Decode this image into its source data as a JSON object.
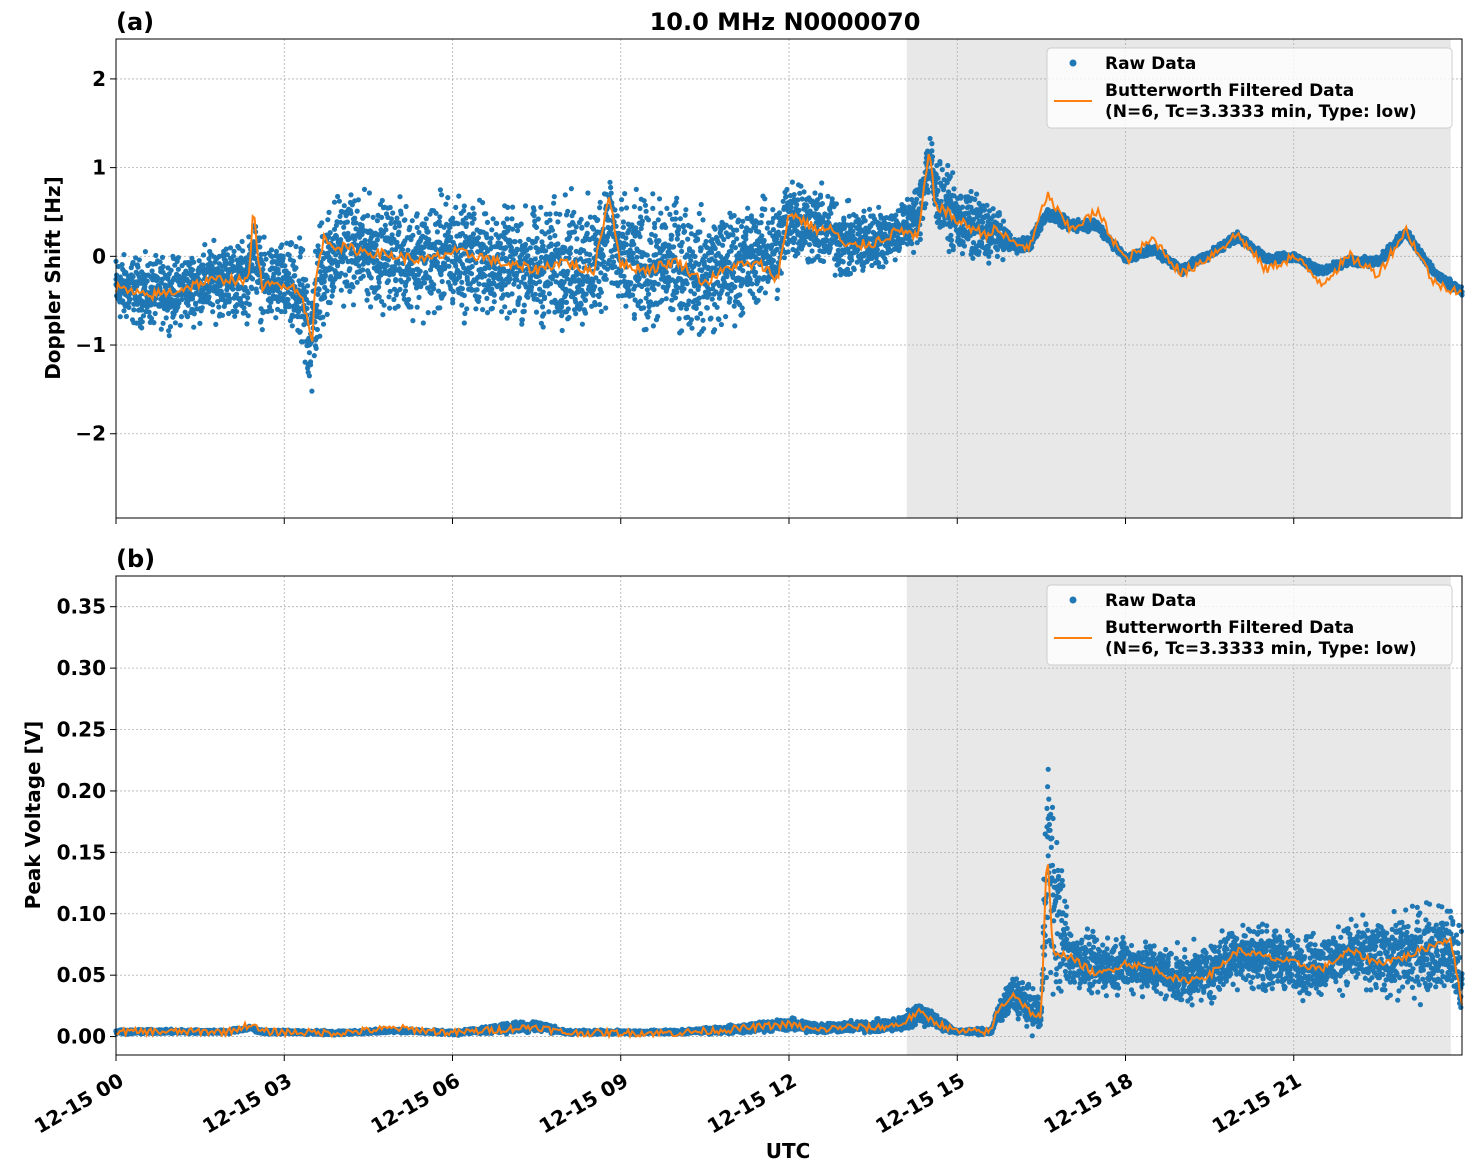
{
  "figure": {
    "title": "10.0 MHz N0000070",
    "xlabel": "UTC",
    "x_tick_labels": [
      "12-15 00",
      "12-15 03",
      "12-15 06",
      "12-15 09",
      "12-15 12",
      "12-15 15",
      "12-15 18",
      "12-15 21"
    ],
    "colors": {
      "raw": "#1f77b4",
      "filtered": "#ff7f0e",
      "shade": "#e8e8e8",
      "grid": "#b0b0b0"
    }
  },
  "chart_data": [
    {
      "type": "scatter",
      "panel_label": "(a)",
      "ylabel": "Doppler Shift [Hz]",
      "x_unit": "hours UTC since 12-15 00",
      "xlim": [
        0,
        24
      ],
      "ylim": [
        -2.95,
        2.45
      ],
      "y_ticks": [
        -2,
        -1,
        0,
        1,
        2
      ],
      "y_tick_labels": [
        "−2",
        "−1",
        "0",
        "1",
        "2"
      ],
      "grid": true,
      "shaded_x": [
        14.1,
        23.8
      ],
      "legend": {
        "position": "top-right",
        "raw_label": "Raw Data",
        "filtered_label_line1": "Butterworth Filtered Data",
        "filtered_label_line2": "(N=6, Tc=3.3333 min, Type: low)"
      },
      "series": [
        {
          "name": "Butterworth Filtered Data (N=6, Tc=3.3333 min, Type: low)",
          "x": [
            0,
            0.5,
            1,
            1.5,
            2,
            2.35,
            2.45,
            2.6,
            3,
            3.3,
            3.5,
            3.55,
            3.7,
            4,
            4.5,
            5,
            5.5,
            6,
            6.5,
            7,
            7.5,
            8,
            8.5,
            8.8,
            9,
            9.5,
            10,
            10.5,
            11,
            11.5,
            11.8,
            12,
            12.5,
            12.8,
            13,
            13.5,
            14,
            14.3,
            14.5,
            14.6,
            14.8,
            15,
            15.5,
            15.7,
            16,
            16.3,
            16.6,
            17,
            17.5,
            18,
            18.5,
            19,
            19.5,
            20,
            20.5,
            21,
            21.5,
            22,
            22.5,
            23,
            23.5,
            24
          ],
          "values": [
            -0.35,
            -0.45,
            -0.4,
            -0.3,
            -0.25,
            -0.3,
            0.5,
            -0.35,
            -0.3,
            -0.4,
            -1.0,
            -0.3,
            0.2,
            0.1,
            0.05,
            0.0,
            -0.05,
            0.05,
            0.0,
            -0.1,
            -0.15,
            -0.05,
            -0.2,
            0.7,
            -0.1,
            -0.15,
            -0.05,
            -0.3,
            -0.1,
            -0.1,
            -0.25,
            0.5,
            0.3,
            0.3,
            0.1,
            0.15,
            0.3,
            0.2,
            1.2,
            0.6,
            0.5,
            0.4,
            0.25,
            0.3,
            0.15,
            0.1,
            0.7,
            0.3,
            0.5,
            -0.05,
            0.2,
            -0.2,
            0.0,
            0.25,
            -0.15,
            0.0,
            -0.3,
            0.0,
            -0.2,
            0.3,
            -0.3,
            -0.4
          ]
        },
        {
          "name": "Raw Data",
          "x": [
            0,
            1,
            2,
            3,
            3.5,
            4,
            5,
            6,
            7,
            8,
            9,
            10,
            11,
            12,
            13,
            14,
            14.5,
            15,
            15.5,
            16,
            17,
            18,
            19,
            20,
            21,
            22,
            23,
            24
          ],
          "values": [
            -0.35,
            -0.4,
            -0.25,
            -0.3,
            -0.9,
            0.15,
            0.0,
            0.0,
            -0.1,
            -0.05,
            -0.05,
            -0.1,
            -0.1,
            0.5,
            0.15,
            0.3,
            1.0,
            0.4,
            0.3,
            0.1,
            0.4,
            0.0,
            -0.1,
            0.2,
            0.0,
            -0.1,
            0.25,
            -0.4
          ],
          "spread": [
            0.45,
            0.45,
            0.5,
            0.55,
            0.9,
            0.7,
            0.7,
            0.8,
            0.7,
            0.85,
            0.85,
            0.85,
            0.75,
            0.6,
            0.5,
            0.35,
            0.5,
            0.45,
            0.45,
            0.1,
            0.08,
            0.06,
            0.06,
            0.06,
            0.06,
            0.06,
            0.06,
            0.06
          ]
        }
      ]
    },
    {
      "type": "scatter",
      "panel_label": "(b)",
      "ylabel": "Peak Voltage [V]",
      "x_unit": "hours UTC since 12-15 00",
      "xlim": [
        0,
        24
      ],
      "ylim": [
        -0.015,
        0.375
      ],
      "y_ticks": [
        0.0,
        0.05,
        0.1,
        0.15,
        0.2,
        0.25,
        0.3,
        0.35
      ],
      "y_tick_labels": [
        "0.00",
        "0.05",
        "0.10",
        "0.15",
        "0.20",
        "0.25",
        "0.30",
        "0.35"
      ],
      "grid": true,
      "shaded_x": [
        14.1,
        23.8
      ],
      "legend": {
        "position": "top-right",
        "raw_label": "Raw Data",
        "filtered_label_line1": "Butterworth Filtered Data",
        "filtered_label_line2": "(N=6, Tc=3.3333 min, Type: low)"
      },
      "series": [
        {
          "name": "Butterworth Filtered Data (N=6, Tc=3.3333 min, Type: low)",
          "x": [
            0,
            2,
            2.4,
            2.6,
            4,
            5,
            6,
            7.5,
            8,
            9,
            10,
            11,
            12,
            12.5,
            13,
            13.5,
            14,
            14.3,
            14.6,
            15,
            15.6,
            15.7,
            16,
            16.3,
            16.5,
            16.6,
            16.7,
            17,
            17.5,
            18,
            18.5,
            19,
            19.5,
            20,
            20.5,
            21,
            21.5,
            22,
            22.5,
            23,
            23.5,
            23.8,
            24
          ],
          "values": [
            0.004,
            0.004,
            0.01,
            0.004,
            0.003,
            0.007,
            0.003,
            0.008,
            0.003,
            0.003,
            0.003,
            0.006,
            0.01,
            0.005,
            0.008,
            0.007,
            0.01,
            0.02,
            0.012,
            0.004,
            0.004,
            0.02,
            0.035,
            0.02,
            0.015,
            0.155,
            0.07,
            0.065,
            0.05,
            0.06,
            0.055,
            0.045,
            0.05,
            0.07,
            0.065,
            0.06,
            0.055,
            0.07,
            0.06,
            0.065,
            0.075,
            0.08,
            0.025
          ]
        },
        {
          "name": "Raw Data",
          "x": [
            0,
            2,
            4,
            6,
            7.5,
            8,
            10,
            11,
            12,
            13,
            14,
            14.3,
            15,
            15.6,
            16,
            16.5,
            16.6,
            17,
            18,
            19,
            20,
            21,
            22,
            23,
            24
          ],
          "values": [
            0.004,
            0.004,
            0.003,
            0.003,
            0.01,
            0.004,
            0.004,
            0.006,
            0.01,
            0.008,
            0.01,
            0.02,
            0.004,
            0.004,
            0.035,
            0.02,
            0.18,
            0.065,
            0.06,
            0.05,
            0.065,
            0.06,
            0.065,
            0.07,
            0.06
          ],
          "spread": [
            0.002,
            0.002,
            0.002,
            0.002,
            0.006,
            0.002,
            0.002,
            0.004,
            0.006,
            0.005,
            0.007,
            0.012,
            0.002,
            0.003,
            0.02,
            0.02,
            0.12,
            0.03,
            0.025,
            0.025,
            0.03,
            0.03,
            0.03,
            0.04,
            0.045
          ]
        }
      ]
    }
  ]
}
